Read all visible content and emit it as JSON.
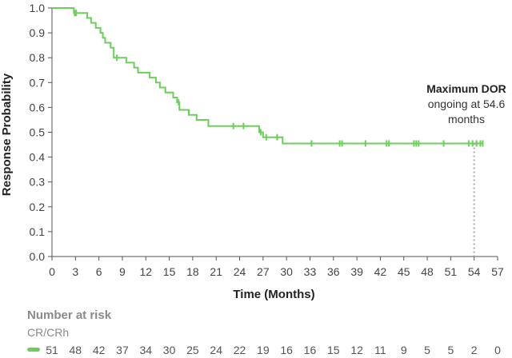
{
  "chart_data": {
    "type": "line",
    "step": true,
    "xlabel": "Time (Months)",
    "ylabel": "Response Probability",
    "xlim": [
      0,
      57
    ],
    "ylim": [
      0,
      1.0
    ],
    "x_ticks": [
      0,
      3,
      6,
      9,
      12,
      15,
      18,
      21,
      24,
      27,
      30,
      33,
      36,
      39,
      42,
      45,
      48,
      51,
      54,
      57
    ],
    "y_ticks": [
      0.0,
      0.1,
      0.2,
      0.3,
      0.4,
      0.5,
      0.6,
      0.7,
      0.8,
      0.9,
      1.0
    ],
    "color": "#6ccf5a",
    "series": [
      {
        "name": "CR/CRh",
        "steps": [
          [
            0,
            1.0
          ],
          [
            2.8,
            0.98
          ],
          [
            4.5,
            0.96
          ],
          [
            5.0,
            0.94
          ],
          [
            5.6,
            0.92
          ],
          [
            6.2,
            0.9
          ],
          [
            6.5,
            0.88
          ],
          [
            6.8,
            0.86
          ],
          [
            7.5,
            0.84
          ],
          [
            7.9,
            0.8
          ],
          [
            9.5,
            0.78
          ],
          [
            10.5,
            0.76
          ],
          [
            11.0,
            0.74
          ],
          [
            12.5,
            0.72
          ],
          [
            13.3,
            0.7
          ],
          [
            13.8,
            0.68
          ],
          [
            14.5,
            0.66
          ],
          [
            15.5,
            0.64
          ],
          [
            16.0,
            0.62
          ],
          [
            16.3,
            0.59
          ],
          [
            17.5,
            0.57
          ],
          [
            18.5,
            0.55
          ],
          [
            20.0,
            0.525
          ],
          [
            26.5,
            0.5
          ],
          [
            27.0,
            0.48
          ],
          [
            29.5,
            0.455
          ],
          [
            55.2,
            0.455
          ]
        ],
        "censored": [
          [
            2.9,
            0.98
          ],
          [
            3.1,
            0.98
          ],
          [
            8.3,
            0.8
          ],
          [
            16.2,
            0.62
          ],
          [
            23.2,
            0.525
          ],
          [
            24.5,
            0.525
          ],
          [
            26.7,
            0.5
          ],
          [
            27.4,
            0.48
          ],
          [
            28.8,
            0.48
          ],
          [
            33.2,
            0.455
          ],
          [
            36.8,
            0.455
          ],
          [
            37.1,
            0.455
          ],
          [
            40.1,
            0.455
          ],
          [
            42.8,
            0.455
          ],
          [
            43.1,
            0.455
          ],
          [
            46.3,
            0.455
          ],
          [
            46.6,
            0.455
          ],
          [
            46.9,
            0.455
          ],
          [
            50.1,
            0.455
          ],
          [
            53.3,
            0.455
          ],
          [
            53.8,
            0.455
          ],
          [
            54.3,
            0.455
          ],
          [
            54.8,
            0.455
          ],
          [
            55.1,
            0.455
          ]
        ]
      }
    ],
    "annotation": {
      "x": 54,
      "y_top": 0.455,
      "bold_text": "Maximum DOR",
      "lines": [
        "ongoing at 54.6",
        "months"
      ]
    }
  },
  "risk_table": {
    "title": "Number at risk",
    "row_label": "CR/CRh",
    "values": [
      "51",
      "48",
      "42",
      "37",
      "34",
      "30",
      "25",
      "24",
      "22",
      "19",
      "16",
      "16",
      "15",
      "12",
      "11",
      "9",
      "5",
      "5",
      "2",
      "0"
    ]
  }
}
